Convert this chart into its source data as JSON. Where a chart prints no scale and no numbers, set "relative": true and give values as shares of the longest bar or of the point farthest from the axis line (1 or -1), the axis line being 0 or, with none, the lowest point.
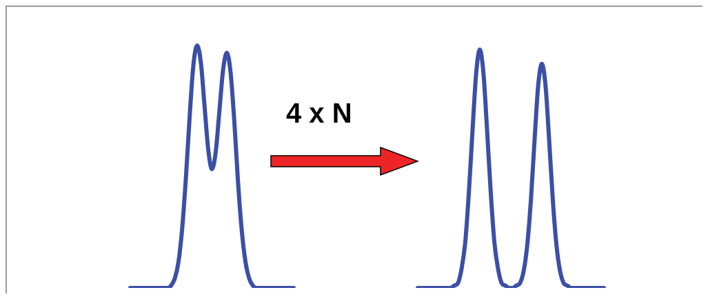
{
  "chart_data": [
    {
      "type": "line",
      "relative": true,
      "marker": "none",
      "annotations": [
        "4 x N"
      ],
      "categories": [
        null,
        null,
        null,
        null,
        null,
        null,
        null,
        null,
        null,
        null,
        null,
        null,
        null,
        null,
        null,
        null,
        null,
        null,
        null,
        null,
        null,
        null,
        null,
        null,
        null,
        null,
        null,
        null,
        null,
        null,
        null,
        null,
        null,
        null,
        null,
        null,
        null,
        null,
        null,
        null,
        null,
        null,
        null,
        null,
        null
      ],
      "series": [
        {
          "color": "#3b4fa6",
          "values": [
            0,
            0,
            0,
            0,
            0,
            0,
            0,
            0,
            0,
            0,
            0,
            0.01,
            0.04,
            0.11,
            0.25,
            0.46,
            0.71,
            0.92,
            1,
            0.93,
            0.75,
            0.57,
            0.49,
            0.56,
            0.73,
            0.9,
            0.97,
            0.89,
            0.69,
            0.44,
            0.24,
            0.11,
            0.04,
            0.01,
            0,
            0,
            0,
            0,
            0,
            0,
            0,
            0,
            0,
            0,
            0
          ]
        }
      ]
    },
    {
      "type": "line",
      "relative": true,
      "marker": "none",
      "categories": [
        null,
        null,
        null,
        null,
        null,
        null,
        null,
        null,
        null,
        null,
        null,
        null,
        null,
        null,
        null,
        null,
        null,
        null,
        null,
        null,
        null,
        null,
        null,
        null,
        null,
        null,
        null,
        null,
        null,
        null,
        null,
        null,
        null,
        null,
        null,
        null,
        null,
        null,
        null,
        null,
        null,
        null,
        null,
        null,
        null,
        null,
        null,
        null,
        null,
        null,
        null,
        null
      ],
      "series": [
        {
          "color": "#3b4fa6",
          "values": [
            0,
            0,
            0,
            0,
            0,
            0,
            0,
            0,
            0,
            0,
            0.01,
            0.02,
            0.08,
            0.19,
            0.4,
            0.66,
            0.9,
            1,
            0.9,
            0.66,
            0.4,
            0.19,
            0.08,
            0.02,
            0.01,
            0,
            0,
            0.01,
            0.02,
            0.07,
            0.18,
            0.37,
            0.62,
            0.85,
            0.94,
            0.85,
            0.62,
            0.37,
            0.18,
            0.07,
            0.02,
            0.01,
            0,
            0,
            0,
            0,
            0,
            0,
            0,
            0,
            0,
            0
          ]
        }
      ]
    }
  ]
}
